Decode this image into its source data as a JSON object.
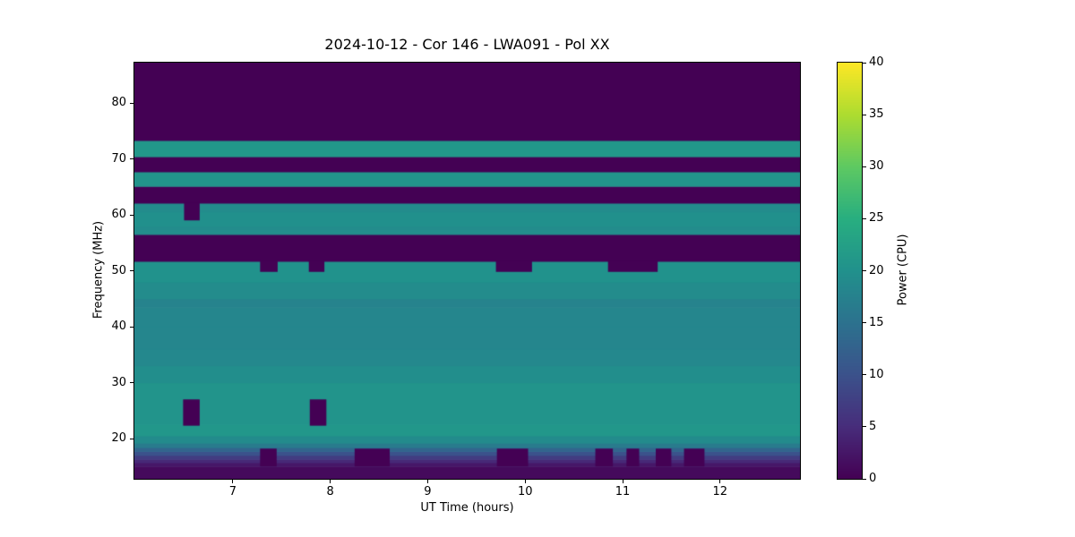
{
  "chart_data": {
    "type": "heatmap",
    "title": "2024-10-12 - Cor 146 - LWA091 - Pol XX",
    "xlabel": "UT Time (hours)",
    "ylabel": "Frequency (MHz)",
    "colorbar_label": "Power (CPU)",
    "x_range": [
      5.99,
      12.82
    ],
    "y_range": [
      12.8,
      87.2
    ],
    "value_range": [
      0,
      40
    ],
    "x_ticks": [
      7,
      8,
      9,
      10,
      11,
      12
    ],
    "y_ticks": [
      20,
      30,
      40,
      50,
      60,
      70,
      80
    ],
    "colorbar_ticks": [
      0,
      5,
      10,
      15,
      20,
      25,
      30,
      35,
      40
    ],
    "colormap": "viridis",
    "colormap_stops": [
      "#440154",
      "#472d7b",
      "#3b528b",
      "#2c728e",
      "#21918c",
      "#28ae80",
      "#5ec962",
      "#addc30",
      "#fde725"
    ],
    "legend_position": "right-colorbar",
    "grid": false,
    "bands": [
      {
        "f0": 12.8,
        "f1": 15.0,
        "v": 1
      },
      {
        "f0": 15.0,
        "f1": 15.7,
        "v": 2.5
      },
      {
        "f0": 15.7,
        "f1": 16.3,
        "v": 4.5
      },
      {
        "f0": 16.3,
        "f1": 17.0,
        "v": 7
      },
      {
        "f0": 17.0,
        "f1": 17.7,
        "v": 10
      },
      {
        "f0": 17.7,
        "f1": 18.4,
        "v": 13
      },
      {
        "f0": 18.4,
        "f1": 19.2,
        "v": 16.5
      },
      {
        "f0": 19.2,
        "f1": 20.5,
        "v": 19
      },
      {
        "f0": 20.5,
        "f1": 22.5,
        "v": 21
      },
      {
        "f0": 22.5,
        "f1": 30.0,
        "v": 20.5
      },
      {
        "f0": 30.0,
        "f1": 33.0,
        "v": 19.5
      },
      {
        "f0": 33.0,
        "f1": 36.0,
        "v": 18.5
      },
      {
        "f0": 36.0,
        "f1": 40.0,
        "v": 18.2
      },
      {
        "f0": 40.0,
        "f1": 43.5,
        "v": 18.2
      },
      {
        "f0": 43.5,
        "f1": 45.0,
        "v": 17.8
      },
      {
        "f0": 45.0,
        "f1": 48.0,
        "v": 19.2
      },
      {
        "f0": 48.0,
        "f1": 51.7,
        "v": 20.2
      },
      {
        "f0": 51.7,
        "f1": 56.5,
        "v": 0
      },
      {
        "f0": 56.5,
        "f1": 58.0,
        "v": 19.2
      },
      {
        "f0": 58.0,
        "f1": 60.5,
        "v": 19.8
      },
      {
        "f0": 60.5,
        "f1": 62.1,
        "v": 19.2
      },
      {
        "f0": 62.1,
        "f1": 65.1,
        "v": 0
      },
      {
        "f0": 65.1,
        "f1": 67.7,
        "v": 20.5
      },
      {
        "f0": 67.7,
        "f1": 70.4,
        "v": 0
      },
      {
        "f0": 70.4,
        "f1": 73.3,
        "v": 21
      },
      {
        "f0": 73.3,
        "f1": 87.2,
        "v": 0
      }
    ],
    "features": [
      {
        "t0": 6.5,
        "t1": 6.66,
        "f0": 59.0,
        "f1": 62.1,
        "v": 0
      },
      {
        "t0": 7.28,
        "t1": 7.46,
        "f0": 49.8,
        "f1": 51.7,
        "v": 0
      },
      {
        "t0": 7.78,
        "t1": 7.94,
        "f0": 49.8,
        "f1": 51.7,
        "v": 0
      },
      {
        "t0": 9.7,
        "t1": 10.07,
        "f0": 49.8,
        "f1": 51.7,
        "v": 0
      },
      {
        "t0": 10.85,
        "t1": 11.36,
        "f0": 49.8,
        "f1": 51.7,
        "v": 0
      },
      {
        "t0": 6.49,
        "t1": 6.66,
        "f0": 22.3,
        "f1": 27.0,
        "v": 0
      },
      {
        "t0": 7.79,
        "t1": 7.96,
        "f0": 22.3,
        "f1": 27.0,
        "v": 0
      },
      {
        "t0": 7.28,
        "t1": 7.45,
        "f0": 15.0,
        "f1": 18.2,
        "v": 0
      },
      {
        "t0": 8.25,
        "t1": 8.61,
        "f0": 15.0,
        "f1": 18.2,
        "v": 0
      },
      {
        "t0": 9.71,
        "t1": 10.03,
        "f0": 15.0,
        "f1": 18.2,
        "v": 0
      },
      {
        "t0": 10.72,
        "t1": 10.9,
        "f0": 15.0,
        "f1": 18.2,
        "v": 0
      },
      {
        "t0": 11.04,
        "t1": 11.17,
        "f0": 15.0,
        "f1": 18.2,
        "v": 0
      },
      {
        "t0": 11.34,
        "t1": 11.5,
        "f0": 15.0,
        "f1": 18.2,
        "v": 0
      },
      {
        "t0": 11.63,
        "t1": 11.84,
        "f0": 15.0,
        "f1": 18.2,
        "v": 0
      }
    ]
  }
}
